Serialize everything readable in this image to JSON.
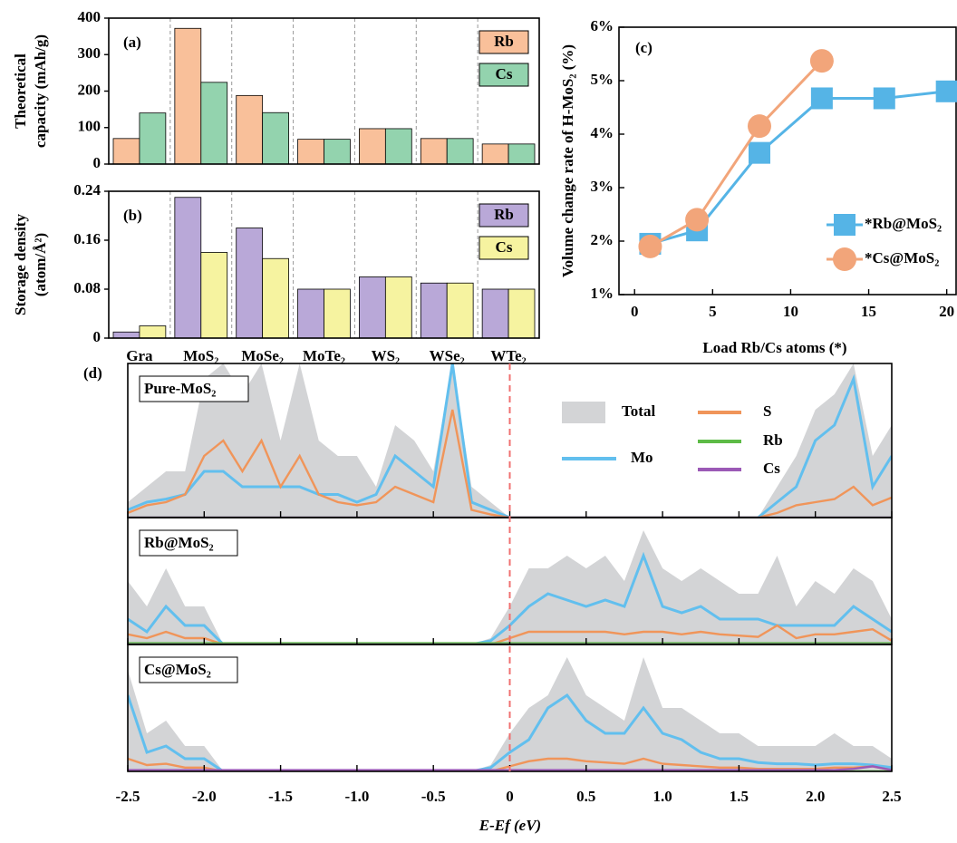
{
  "chart_data": [
    {
      "type": "bar",
      "label": "(a)",
      "ylabel": [
        "Theoretical",
        "capacity (mAh/g)"
      ],
      "ylim": [
        0,
        400
      ],
      "yticks": [
        0,
        100,
        200,
        300,
        400
      ],
      "series": [
        {
          "name": "Rb",
          "color": "#f9c09a",
          "values": [
            70,
            372,
            188,
            68,
            97,
            70,
            55
          ]
        },
        {
          "name": "Cs",
          "color": "#93d3ae",
          "values": [
            140,
            224,
            141,
            68,
            97,
            70,
            55
          ]
        }
      ]
    },
    {
      "type": "bar",
      "label": "(b)",
      "ylabel": [
        "Storage density",
        "(atom/Å²)"
      ],
      "categories": [
        "Gra",
        "MoS₂",
        "MoSe₂",
        "MoTe₂",
        "WS₂",
        "WSe₂",
        "WTe₂"
      ],
      "ylim": [
        0,
        0.24
      ],
      "yticks": [
        0,
        0.08,
        0.16,
        0.24
      ],
      "series": [
        {
          "name": "Rb",
          "color": "#b9a8d8",
          "values": [
            0.01,
            0.23,
            0.18,
            0.08,
            0.1,
            0.09,
            0.08
          ]
        },
        {
          "name": "Cs",
          "color": "#f6f3a0",
          "values": [
            0.02,
            0.14,
            0.13,
            0.08,
            0.1,
            0.09,
            0.08
          ]
        }
      ]
    },
    {
      "type": "line",
      "label": "(c)",
      "ylabel": "Volume change rate of H-MoS₂ (%)",
      "xlabel": "Load Rb/Cs atoms (*)",
      "xlim": [
        -1,
        20.6
      ],
      "xticks": [
        0,
        5,
        10,
        15,
        20
      ],
      "ylim": [
        1,
        6
      ],
      "yticks": [
        {
          "value": 1,
          "label": "1%"
        },
        {
          "value": 2,
          "label": "2%"
        },
        {
          "value": 3,
          "label": "3%"
        },
        {
          "value": 4,
          "label": "4%"
        },
        {
          "value": 5,
          "label": "5%"
        },
        {
          "value": 6,
          "label": "6%"
        }
      ],
      "series": [
        {
          "name": "*Rb@MoS₂",
          "color": "#55b4e6",
          "marker": "square",
          "x": [
            1,
            4,
            8,
            12,
            16,
            20
          ],
          "values": [
            1.95,
            2.2,
            3.65,
            4.67,
            4.67,
            4.8
          ]
        },
        {
          "name": "*Cs@MoS₂",
          "color": "#f2a57a",
          "marker": "circle",
          "x": [
            1,
            4,
            8,
            12
          ],
          "values": [
            1.9,
            2.4,
            4.15,
            5.37
          ]
        }
      ]
    },
    {
      "type": "dos",
      "label": "(d)",
      "xlabel": "E-Ef (eV)",
      "vline": 0,
      "xlim": [
        -2.5,
        2.5
      ],
      "xticks": [
        -2.5,
        {
          "value": -2,
          "label": "-2.0"
        },
        -1.5,
        {
          "value": -1,
          "label": "-1.0"
        },
        -0.5,
        0,
        0.5,
        {
          "value": 1,
          "label": "1.0"
        },
        1.5,
        {
          "value": 2,
          "label": "2.0"
        },
        2.5
      ],
      "x": [
        -2.5,
        -2.375,
        -2.25,
        -2.125,
        -2,
        -1.875,
        -1.75,
        -1.625,
        -1.5,
        -1.375,
        -1.25,
        -1.125,
        -1,
        -0.875,
        -0.75,
        -0.625,
        -0.5,
        -0.375,
        -0.25,
        -0.125,
        0,
        0.125,
        0.25,
        0.375,
        0.5,
        0.625,
        0.75,
        0.875,
        1,
        1.125,
        1.25,
        1.375,
        1.5,
        1.625,
        1.75,
        1.875,
        2,
        2.125,
        2.25,
        2.375,
        2.5
      ],
      "legend": [
        {
          "name": "Total",
          "color": "#d3d4d6"
        },
        {
          "name": "Mo",
          "color": "#62bfee"
        },
        {
          "name": "S",
          "color": "#f0955a"
        },
        {
          "name": "Rb",
          "color": "#5dbb46"
        },
        {
          "name": "Cs",
          "color": "#9b59b6"
        }
      ],
      "panels": [
        {
          "title": "Pure-MoS₂",
          "ylim": [
            0,
            10
          ],
          "series": [
            [
              1,
              2,
              3,
              3,
              9,
              10,
              8,
              10,
              5,
              10,
              5,
              4,
              4,
              2,
              6,
              5,
              3,
              10,
              2,
              1,
              0,
              0,
              0,
              0,
              0,
              0,
              0,
              0,
              0,
              0,
              0,
              0,
              0,
              0,
              2,
              4,
              7,
              8,
              10,
              4,
              6
            ],
            [
              0.5,
              1,
              1.2,
              1.5,
              3,
              3,
              2,
              2,
              2,
              2,
              1.5,
              1.5,
              1,
              1.5,
              4,
              3,
              2,
              10,
              1,
              0.5,
              0,
              0,
              0,
              0,
              0,
              0,
              0,
              0,
              0,
              0,
              0,
              0,
              0,
              0,
              1,
              2,
              5,
              6,
              9,
              2,
              4
            ],
            [
              0.3,
              0.8,
              1,
              1.5,
              4,
              5,
              3,
              5,
              2,
              4,
              1.5,
              1,
              0.8,
              1,
              2,
              1.5,
              1,
              7,
              0.5,
              0.2,
              0,
              0,
              0,
              0,
              0,
              0,
              0,
              0,
              0,
              0,
              0,
              0,
              0,
              0,
              0.3,
              0.8,
              1,
              1.2,
              2,
              0.8,
              1.3
            ],
            [
              0,
              0,
              0,
              0,
              0,
              0,
              0,
              0,
              0,
              0,
              0,
              0,
              0,
              0,
              0,
              0,
              0,
              0,
              0,
              0,
              0,
              0,
              0,
              0,
              0,
              0,
              0,
              0,
              0,
              0,
              0,
              0,
              0,
              0,
              0,
              0,
              0,
              0,
              0,
              0,
              0
            ],
            [
              0,
              0,
              0,
              0,
              0,
              0,
              0,
              0,
              0,
              0,
              0,
              0,
              0,
              0,
              0,
              0,
              0,
              0,
              0,
              0,
              0,
              0,
              0,
              0,
              0,
              0,
              0,
              0,
              0,
              0,
              0,
              0,
              0,
              0,
              0,
              0,
              0,
              0,
              0,
              0,
              0
            ]
          ]
        },
        {
          "title": "Rb@MoS₂",
          "ylim": [
            0,
            10
          ],
          "series": [
            [
              5,
              3,
              6,
              3,
              3,
              0,
              0,
              0,
              0,
              0,
              0,
              0,
              0,
              0,
              0,
              0,
              0,
              0,
              0,
              0.5,
              3,
              6,
              6,
              7,
              6,
              7,
              5,
              9,
              6,
              5,
              6,
              5,
              4,
              4,
              7,
              3,
              5,
              4,
              6,
              5,
              2
            ],
            [
              2,
              1,
              3,
              1.5,
              1.5,
              0,
              0,
              0,
              0,
              0,
              0,
              0,
              0,
              0,
              0,
              0,
              0,
              0,
              0,
              0.3,
              1.5,
              3,
              4,
              3.5,
              3,
              3.5,
              3,
              7,
              3,
              2.5,
              3,
              2,
              2,
              2,
              1.5,
              1.5,
              1.5,
              1.5,
              3,
              2,
              1
            ],
            [
              0.8,
              0.5,
              1,
              0.5,
              0.5,
              0,
              0,
              0,
              0,
              0,
              0,
              0,
              0,
              0,
              0,
              0,
              0,
              0,
              0,
              0,
              0.5,
              1,
              1,
              1,
              1,
              1,
              0.8,
              1,
              1,
              0.8,
              1,
              0.8,
              0.7,
              0.6,
              1.5,
              0.5,
              0.8,
              0.8,
              1,
              1.2,
              0.3
            ],
            [
              0.1,
              0.1,
              0.1,
              0.1,
              0.1,
              0.1,
              0.1,
              0.1,
              0.1,
              0.1,
              0.1,
              0.1,
              0.1,
              0.1,
              0.1,
              0.1,
              0.1,
              0.1,
              0.1,
              0.1,
              0.1,
              0.1,
              0.1,
              0.1,
              0.1,
              0.1,
              0.1,
              0.1,
              0.1,
              0.1,
              0.1,
              0.1,
              0.1,
              0.1,
              0.1,
              0.1,
              0.1,
              0.1,
              0.1,
              0.1,
              0.1
            ],
            [
              0,
              0,
              0,
              0,
              0,
              0,
              0,
              0,
              0,
              0,
              0,
              0,
              0,
              0,
              0,
              0,
              0,
              0,
              0,
              0,
              0,
              0,
              0,
              0,
              0,
              0,
              0,
              0,
              0,
              0,
              0,
              0,
              0,
              0,
              0,
              0,
              0,
              0,
              0,
              0,
              0
            ]
          ]
        },
        {
          "title": "Cs@MoS₂",
          "ylim": [
            0,
            10
          ],
          "series": [
            [
              8,
              3,
              4,
              2,
              2,
              0,
              0,
              0,
              0,
              0,
              0,
              0,
              0,
              0,
              0,
              0,
              0,
              0,
              0,
              0.5,
              3,
              5,
              6,
              9,
              6,
              5,
              4,
              9,
              5,
              5,
              4,
              3,
              3,
              2,
              2,
              2,
              2,
              3,
              2,
              2,
              1
            ],
            [
              6,
              1.5,
              2,
              1,
              1,
              0,
              0,
              0,
              0,
              0,
              0,
              0,
              0,
              0,
              0,
              0,
              0,
              0,
              0,
              0.3,
              1.5,
              2.5,
              5,
              6,
              4,
              3,
              3,
              5,
              3,
              2.5,
              1.5,
              1,
              1,
              0.7,
              0.6,
              0.6,
              0.5,
              0.6,
              0.6,
              0.5,
              0.3
            ],
            [
              1,
              0.5,
              0.6,
              0.3,
              0.3,
              0,
              0,
              0,
              0,
              0,
              0,
              0,
              0,
              0,
              0,
              0,
              0,
              0,
              0,
              0,
              0.4,
              0.8,
              1,
              1,
              0.8,
              0.7,
              0.6,
              1,
              0.6,
              0.5,
              0.4,
              0.3,
              0.3,
              0.2,
              0.2,
              0.2,
              0.2,
              0.3,
              0.3,
              0.4,
              0.1
            ],
            [
              0,
              0,
              0,
              0,
              0,
              0,
              0,
              0,
              0,
              0,
              0,
              0,
              0,
              0,
              0,
              0,
              0,
              0,
              0,
              0,
              0,
              0,
              0,
              0,
              0,
              0,
              0,
              0,
              0,
              0,
              0,
              0,
              0,
              0,
              0,
              0,
              0,
              0,
              0,
              0,
              0
            ],
            [
              0.1,
              0.1,
              0.1,
              0.1,
              0.1,
              0.1,
              0.1,
              0.1,
              0.1,
              0.1,
              0.1,
              0.1,
              0.1,
              0.1,
              0.1,
              0.1,
              0.1,
              0.1,
              0.1,
              0.1,
              0.1,
              0.1,
              0.1,
              0.1,
              0.1,
              0.1,
              0.1,
              0.1,
              0.1,
              0.1,
              0.1,
              0.1,
              0.1,
              0.1,
              0.1,
              0.1,
              0.1,
              0.1,
              0.2,
              0.4,
              0.1
            ]
          ]
        }
      ]
    }
  ]
}
